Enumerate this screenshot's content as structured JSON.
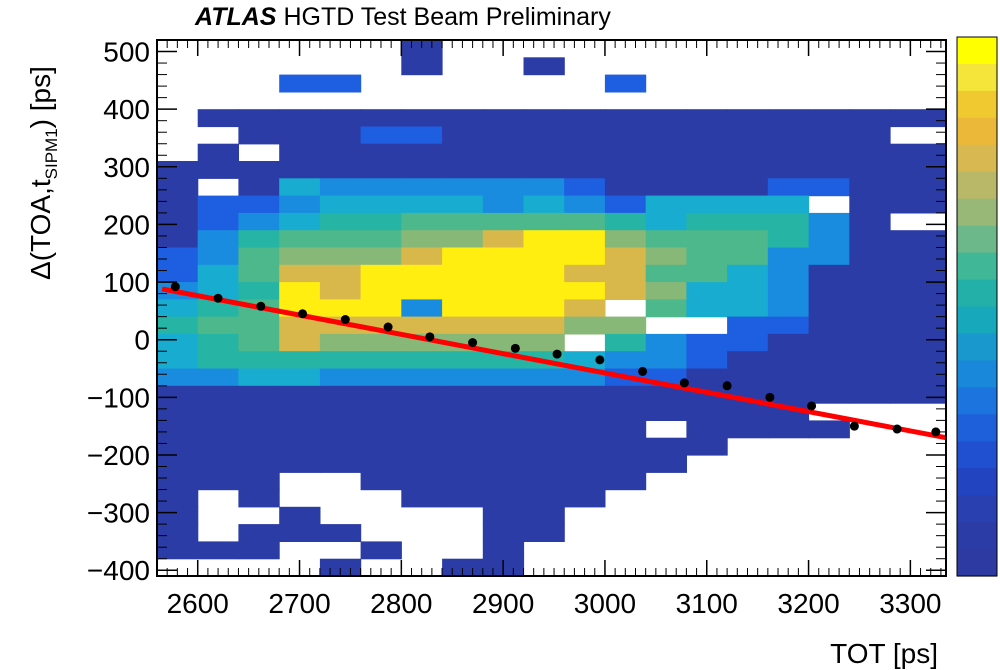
{
  "header": {
    "brand": "ATLAS",
    "text": "HGTD Test Beam Preliminary"
  },
  "chart_data": {
    "type": "heatmap",
    "title": "ATLAS HGTD Test Beam Preliminary",
    "xlabel": "TOT [ps]",
    "ylabel": "Δ(TOA,t_SIPM1) [ps]",
    "ylabel_parts": {
      "main": "Δ(TOA,t",
      "sub": "SIPM1",
      "tail": ") [ps]"
    },
    "xlim": [
      2560,
      3335
    ],
    "ylim": [
      -410,
      520
    ],
    "x_bin_edges": [
      2560,
      2600,
      2640,
      2680,
      2720,
      2760,
      2800,
      2840,
      2880,
      2920,
      2960,
      3000,
      3040,
      3080,
      3120,
      3160,
      3200,
      3240,
      3280,
      3335
    ],
    "y_bin_edges": [
      -410,
      -380,
      -350,
      -320,
      -290,
      -260,
      -230,
      -200,
      -170,
      -140,
      -110,
      -80,
      -50,
      -20,
      10,
      40,
      70,
      100,
      130,
      160,
      190,
      220,
      250,
      280,
      310,
      340,
      370,
      400,
      430,
      460,
      490,
      520
    ],
    "x_ticks": [
      2600,
      2700,
      2800,
      2900,
      3000,
      3100,
      3200,
      3300
    ],
    "x_tick_labels": [
      "2600",
      "2700",
      "2800",
      "2900",
      "3000",
      "3100",
      "3200",
      "3300"
    ],
    "y_ticks": [
      -400,
      -300,
      -200,
      -100,
      0,
      100,
      200,
      300,
      400,
      500
    ],
    "y_tick_labels": [
      "−400",
      "−300",
      "−200",
      "−100",
      "0",
      "100",
      "200",
      "300",
      "400",
      "500"
    ],
    "colorbar": {
      "levels": 20,
      "colors": [
        "#ffff00",
        "#f5e43a",
        "#f0c830",
        "#ebb83a",
        "#d8b850",
        "#b8b868",
        "#98b878",
        "#6cb88a",
        "#40b898",
        "#22b0a8",
        "#18a8bc",
        "#1898cc",
        "#1a88da",
        "#1c74de",
        "#1e60da",
        "#2050d0",
        "#2244c0",
        "#2840b0",
        "#2c3ca6",
        "#2d3aa2"
      ]
    },
    "heat_rows": [
      "0000001000000000000",
      "0000001001000000000",
      "0002200000020000000",
      "0000000000000000000",
      "0111111111111111111",
      "0011122111111111110",
      "0111111111111111111",
      "1111111111111111111",
      "1114333333211112211",
      "1223444434324444311",
      "1234556666654555311",
      "1356667789976665311",
      "2367778999987663311",
      "2468899999886643111",
      "3459899999987443111",
      "4569993999876443111",
      "5668888888776322111",
      "4568777777653221111",
      "4555555555433211111",
      "3344333333322111111",
      "1111111111111111111",
      "1111111111111111100",
      "1111111111111111100",
      "1111111111111100000",
      "1111111111111000000",
      "1110011111110000000",
      "1011001111100000000",
      "1001000111000000000",
      "1011100011000000000",
      "1110010010000000000",
      "0000100110000000000"
    ],
    "white_holes": [
      [
        3,
        4
      ],
      [
        4,
        5
      ],
      [
        11,
        15
      ],
      [
        12,
        14
      ],
      [
        13,
        14
      ],
      [
        10,
        13
      ],
      [
        18,
        20
      ],
      [
        16,
        21
      ],
      [
        2,
        24
      ],
      [
        1,
        22
      ],
      [
        16,
        9
      ],
      [
        12,
        8
      ],
      [
        6,
        3
      ],
      [
        7,
        3
      ]
    ],
    "profile_points": {
      "x": [
        2578,
        2620,
        2662,
        2703,
        2745,
        2787,
        2828,
        2870,
        2912,
        2953,
        2995,
        3037,
        3078,
        3120,
        3162,
        3203,
        3245,
        3287,
        3325
      ],
      "y": [
        92,
        72,
        58,
        45,
        35,
        22,
        5,
        -5,
        -15,
        -25,
        -35,
        -55,
        -75,
        -80,
        -100,
        -115,
        -150,
        -155,
        -160
      ]
    },
    "fit_line": {
      "x": [
        2565,
        3335
      ],
      "y": [
        88,
        -170
      ],
      "color": "#ff0000"
    },
    "grid": false,
    "legend": "none"
  }
}
